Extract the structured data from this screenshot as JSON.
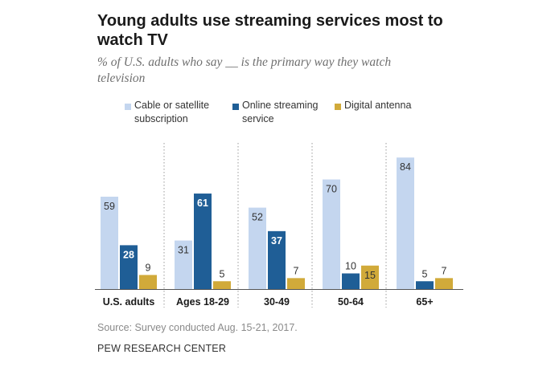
{
  "title": "Young adults use streaming services most to watch TV",
  "subtitle": "% of U.S. adults who say __ is the primary way they watch television",
  "source": "Source: Survey conducted Aug. 15-21, 2017.",
  "organization": "PEW RESEARCH CENTER",
  "colors": {
    "cable": "#c4d6ef",
    "streaming": "#1f5e96",
    "antenna": "#d1aa3a",
    "label_dark": "#333333",
    "label_light": "#ffffff"
  },
  "chart_data": {
    "type": "bar",
    "categories": [
      "U.S. adults",
      "Ages 18-29",
      "30-49",
      "50-64",
      "65+"
    ],
    "series": [
      {
        "name": "Cable or satellite subscription",
        "values": [
          59,
          31,
          52,
          70,
          84
        ]
      },
      {
        "name": "Online streaming service",
        "values": [
          28,
          61,
          37,
          10,
          5
        ]
      },
      {
        "name": "Digital antenna",
        "values": [
          9,
          5,
          7,
          15,
          7
        ]
      }
    ],
    "ylim": [
      0,
      100
    ],
    "grid": false,
    "legend": "top",
    "separators": "dotted vertical lines between groups"
  }
}
